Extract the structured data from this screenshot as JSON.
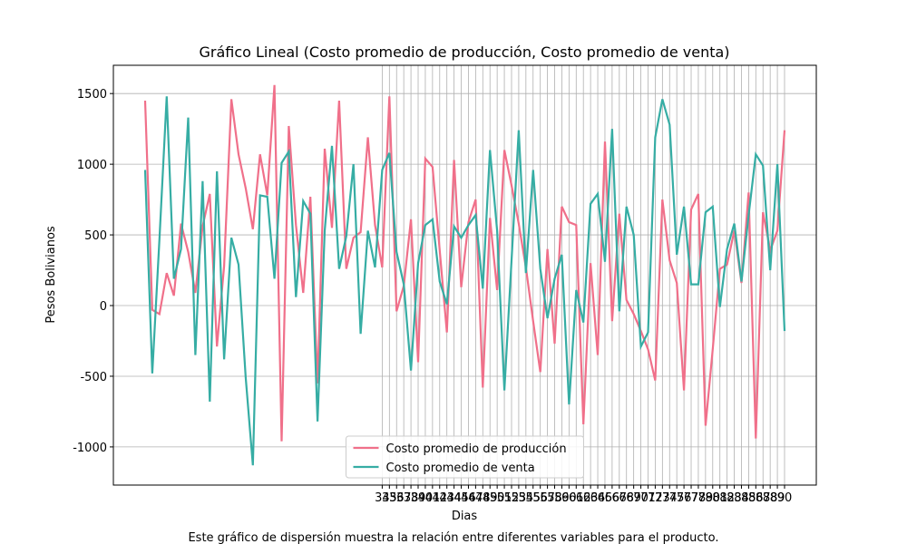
{
  "chart_data": {
    "type": "line",
    "title": "Gráfico Lineal (Costo promedio de producción, Costo promedio de venta)",
    "xlabel": "Dias",
    "ylabel": "Pesos Bolivianos",
    "caption": "Este gráfico de dispersión muestra la relación entre diferentes variables para el producto.",
    "categories": [
      null,
      null,
      null,
      null,
      null,
      null,
      null,
      null,
      null,
      null,
      null,
      null,
      null,
      null,
      null,
      null,
      null,
      null,
      null,
      null,
      null,
      null,
      null,
      null,
      null,
      null,
      null,
      null,
      null,
      null,
      null,
      null,
      null,
      "34",
      "35",
      "36",
      "37",
      "38",
      "39",
      "40",
      "41",
      "42",
      "43",
      "44",
      "45",
      "46",
      "47",
      "48",
      "49",
      "50",
      "51",
      "52",
      "53",
      "54",
      "55",
      "56",
      "57",
      "58",
      "59",
      "60",
      "61",
      "62",
      "63",
      "64",
      "65",
      "66",
      "67",
      "68",
      "69",
      "70",
      "71",
      "72",
      "73",
      "74",
      "75",
      "76",
      "77",
      "78",
      "79",
      "80",
      "81",
      "82",
      "83",
      "84",
      "85",
      "86",
      "87",
      "88",
      "89",
      "90"
    ],
    "series": [
      {
        "name": "Costo promedio de producción",
        "color": "#f0708a",
        "values": [
          1450,
          -30,
          -60,
          230,
          70,
          580,
          380,
          90,
          560,
          790,
          -290,
          280,
          1460,
          1070,
          830,
          540,
          1070,
          780,
          1560,
          -960,
          1270,
          570,
          90,
          770,
          -550,
          1110,
          550,
          1450,
          260,
          480,
          520,
          1190,
          570,
          270,
          1480,
          -40,
          140,
          610,
          -400,
          1040,
          980,
          390,
          -190,
          1030,
          130,
          590,
          750,
          -580,
          620,
          110,
          1100,
          850,
          580,
          270,
          -110,
          -470,
          400,
          -270,
          700,
          590,
          570,
          -840,
          300,
          -350,
          1160,
          -110,
          650,
          40,
          -60,
          -180,
          -310,
          -530,
          750,
          320,
          160,
          -600,
          680,
          790,
          -850,
          -310,
          260,
          290,
          530,
          160,
          800,
          -940,
          660,
          390,
          530,
          1240
        ]
      },
      {
        "name": "Costo promedio de venta",
        "color": "#36ada4",
        "values": [
          960,
          -480,
          470,
          1480,
          190,
          400,
          1330,
          -350,
          880,
          -680,
          950,
          -380,
          480,
          290,
          -510,
          -1130,
          780,
          770,
          190,
          1010,
          1090,
          60,
          740,
          650,
          -820,
          530,
          1130,
          260,
          490,
          1000,
          -200,
          530,
          270,
          960,
          1080,
          380,
          150,
          -460,
          300,
          570,
          610,
          170,
          10,
          560,
          480,
          570,
          640,
          120,
          1100,
          530,
          -600,
          320,
          1240,
          230,
          960,
          260,
          -90,
          190,
          360,
          -700,
          110,
          -120,
          720,
          790,
          310,
          1250,
          -40,
          700,
          500,
          -290,
          -190,
          1190,
          1460,
          1280,
          360,
          700,
          150,
          150,
          660,
          700,
          -10,
          400,
          580,
          170,
          640,
          1070,
          990,
          250,
          1000,
          -180
        ]
      }
    ],
    "ylim": [
      -1270,
      1700
    ],
    "yticks": [
      -1000,
      -500,
      0,
      500,
      1000,
      1500
    ],
    "grid": true,
    "legend": "lower center"
  }
}
